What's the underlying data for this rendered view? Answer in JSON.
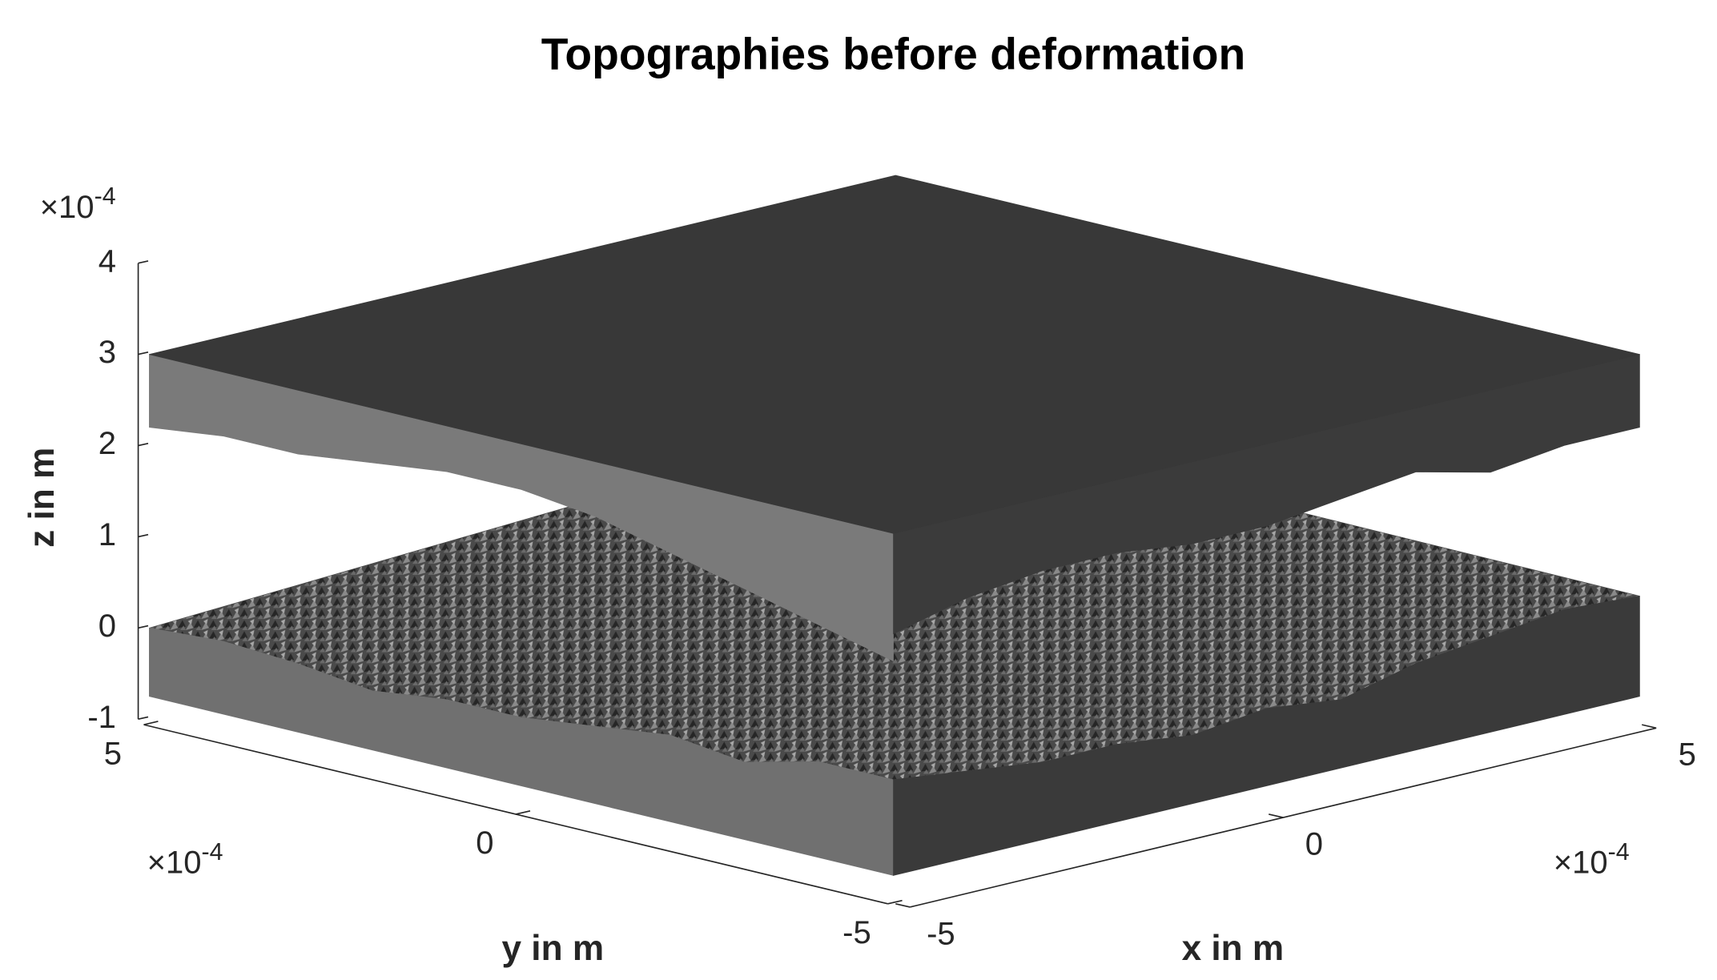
{
  "chart_data": {
    "type": "surface3d",
    "title": "Topographies before deformation",
    "xlabel": "x in m",
    "ylabel": "y in m",
    "zlabel": "z in m",
    "xlim": [
      -5,
      5
    ],
    "ylim": [
      -5,
      5
    ],
    "zlim": [
      -1,
      4
    ],
    "xticks": [
      -5,
      0,
      5
    ],
    "yticks": [
      -5,
      0,
      5
    ],
    "zticks": [
      -1,
      0,
      1,
      2,
      3,
      4
    ],
    "x_multiplier": {
      "base": "×10",
      "exponent": "-4"
    },
    "y_multiplier": {
      "base": "×10",
      "exponent": "-4"
    },
    "z_multiplier": {
      "base": "×10",
      "exponent": "-4"
    },
    "grid": false,
    "edge_positions": [
      -5,
      -4,
      -3,
      -2,
      -1,
      0,
      1,
      2,
      3,
      4,
      5
    ],
    "series": [
      {
        "facing": "up",
        "z_flat": -0.75,
        "z_far": 0.4,
        "color_top": "#4a4a4a",
        "color_side_y": "#707070",
        "color_side_x": "#3a3a3a",
        "edge_y": [
          0.3,
          0.3,
          0.1,
          0.2,
          0.1,
          0.0,
          0.0,
          -0.1,
          0.0,
          0.05,
          0.0
        ],
        "edge_x": [
          0.3,
          0.2,
          0.1,
          0.1,
          0.0,
          0.1,
          0.0,
          0.2,
          0.3,
          0.4,
          0.35
        ]
      },
      {
        "facing": "down",
        "z_flat": 3,
        "color_top": "#383838",
        "color_side_y": "#7a7a7a",
        "color_side_x": "#3b3b3b",
        "edge_y": [
          1.6,
          1.8,
          2.0,
          2.2,
          2.4,
          2.5,
          2.5,
          2.4,
          2.3,
          2.3,
          2.2
        ],
        "edge_x": [
          1.9,
          2.1,
          2.2,
          2.2,
          2.1,
          2.1,
          2.2,
          2.3,
          2.1,
          2.2,
          2.2
        ]
      }
    ]
  }
}
